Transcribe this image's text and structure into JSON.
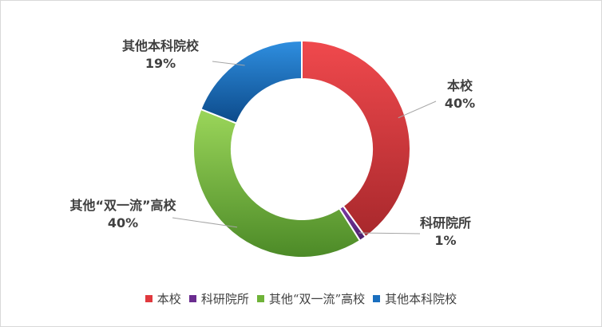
{
  "chart_data": {
    "type": "pie",
    "donut": true,
    "title": "",
    "categories": [
      "本校",
      "科研院所",
      "其他“双一流”高校",
      "其他本科院校"
    ],
    "values": [
      40,
      1,
      40,
      19
    ],
    "value_labels": [
      "40%",
      "1%",
      "40%",
      "19%"
    ],
    "colors": [
      "#e0393e",
      "#6a2c8f",
      "#6fb338",
      "#1a6fbf"
    ],
    "legend_position": "bottom",
    "grid": false
  }
}
